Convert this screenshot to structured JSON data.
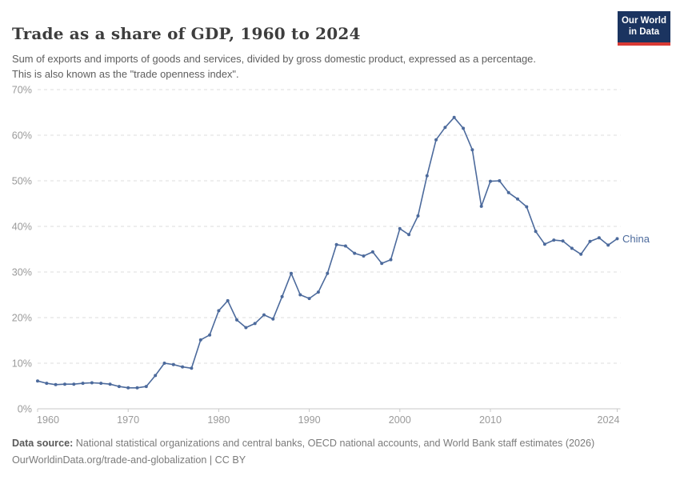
{
  "header": {
    "title": "Trade as a share of GDP, 1960 to 2024",
    "subtitle": "Sum of exports and imports of goods and services, divided by gross domestic product, expressed as a percentage. This is also known as the \"trade openness index\".",
    "logo_line1": "Our World",
    "logo_line2": "in Data",
    "logo_bg_color": "#1b3460",
    "logo_accent_color": "#d93a34"
  },
  "chart_data": {
    "type": "line",
    "title": "Trade as a share of GDP, 1960 to 2024",
    "xlabel": "",
    "ylabel": "",
    "ylim": [
      0,
      70
    ],
    "grid": "horizontal-dashed",
    "legend_position": "label-at-line-end",
    "line_color": "#4c6a9c",
    "ytick_values": [
      0,
      10,
      20,
      30,
      40,
      50,
      60,
      70
    ],
    "ytick_labels": [
      "0%",
      "10%",
      "20%",
      "30%",
      "40%",
      "50%",
      "60%",
      "70%"
    ],
    "xtick_values": [
      1960,
      1970,
      1980,
      1990,
      2000,
      2010,
      2024
    ],
    "x": [
      1960,
      1961,
      1962,
      1963,
      1964,
      1965,
      1966,
      1967,
      1968,
      1969,
      1970,
      1971,
      1972,
      1973,
      1974,
      1975,
      1976,
      1977,
      1978,
      1979,
      1980,
      1981,
      1982,
      1983,
      1984,
      1985,
      1986,
      1987,
      1988,
      1989,
      1990,
      1991,
      1992,
      1993,
      1994,
      1995,
      1996,
      1997,
      1998,
      1999,
      2000,
      2001,
      2002,
      2003,
      2004,
      2005,
      2006,
      2007,
      2008,
      2009,
      2010,
      2011,
      2012,
      2013,
      2014,
      2015,
      2016,
      2017,
      2018,
      2019,
      2020,
      2021,
      2022,
      2023,
      2024
    ],
    "series": [
      {
        "name": "China",
        "color": "#4c6a9c",
        "values": [
          6.1,
          5.6,
          5.3,
          5.4,
          5.4,
          5.6,
          5.7,
          5.6,
          5.4,
          4.9,
          4.6,
          4.6,
          4.9,
          7.3,
          10.0,
          9.7,
          9.2,
          8.9,
          15.1,
          16.2,
          21.5,
          23.7,
          19.5,
          17.8,
          18.7,
          20.6,
          19.7,
          24.6,
          29.7,
          25.0,
          24.2,
          25.6,
          29.7,
          36.0,
          35.7,
          34.1,
          33.5,
          34.4,
          31.9,
          32.7,
          39.5,
          38.2,
          42.3,
          51.1,
          59.0,
          61.7,
          63.9,
          61.5,
          56.8,
          44.4,
          49.9,
          50.0,
          47.4,
          46.0,
          44.3,
          38.9,
          36.1,
          37.0,
          36.8,
          35.2,
          33.9,
          36.7,
          37.5,
          35.9,
          37.3
        ]
      }
    ]
  },
  "footer": {
    "datasource_label": "Data source:",
    "datasource_text": " National statistical organizations and central banks, OECD national accounts, and World Bank staff estimates (2026)",
    "attribution": "OurWorldinData.org/trade-and-globalization | CC BY"
  }
}
